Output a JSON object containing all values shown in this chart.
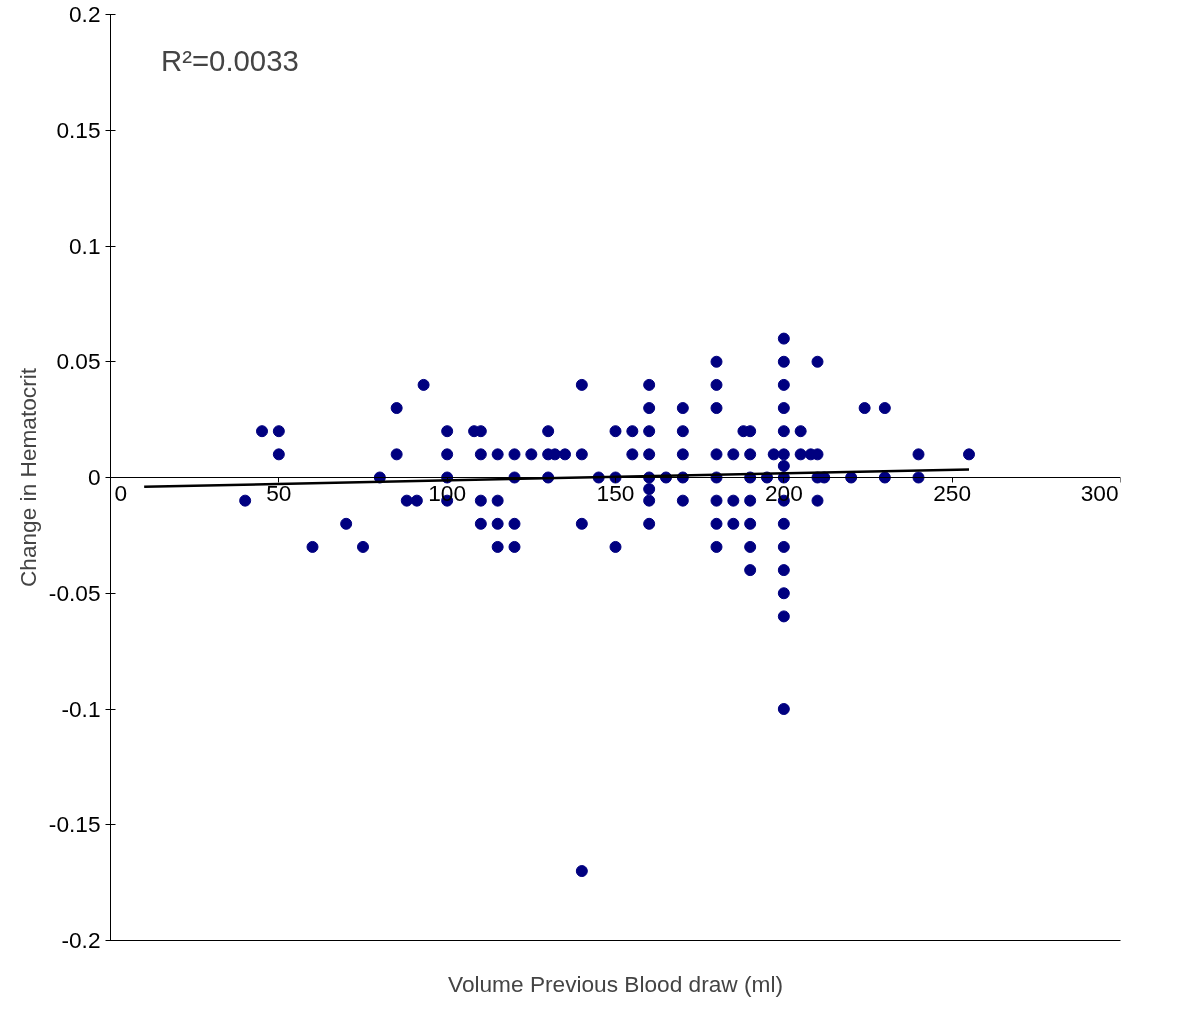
{
  "chart_data": {
    "type": "scatter",
    "xlabel": "Volume Previous Blood draw (ml)",
    "ylabel": "Change in Hematocrit",
    "annotations": [
      "R²=0.0033"
    ],
    "xlim": [
      0,
      300
    ],
    "xticks": [
      0,
      50,
      100,
      150,
      200,
      250,
      300
    ],
    "ylim": [
      -0.2,
      0.2
    ],
    "yticks": [
      -0.2,
      -0.15,
      -0.1,
      -0.05,
      0,
      0.05,
      0.1,
      0.15,
      0.2
    ],
    "grid": false,
    "marker": "circle",
    "series": [
      {
        "color": "#000080",
        "x": [
          40,
          45,
          50,
          50,
          60,
          70,
          75,
          80,
          85,
          85,
          88,
          91,
          93,
          100,
          100,
          100,
          100,
          108,
          110,
          110,
          110,
          110,
          115,
          115,
          115,
          115,
          120,
          120,
          120,
          120,
          125,
          130,
          130,
          130,
          132,
          135,
          140,
          140,
          140,
          140,
          145,
          150,
          150,
          150,
          155,
          155,
          160,
          160,
          160,
          160,
          160,
          160,
          160,
          160,
          165,
          170,
          170,
          170,
          170,
          170,
          180,
          180,
          180,
          180,
          180,
          180,
          180,
          180,
          185,
          185,
          185,
          188,
          190,
          190,
          190,
          190,
          190,
          190,
          190,
          195,
          197,
          200,
          200,
          200,
          200,
          200,
          200,
          200,
          200,
          200,
          200,
          200,
          200,
          200,
          200,
          200,
          205,
          205,
          208,
          210,
          210,
          210,
          210,
          212,
          220,
          224,
          230,
          230,
          240,
          240,
          255
        ],
        "values": [
          -0.01,
          0.02,
          0.02,
          0.01,
          -0.03,
          -0.02,
          -0.03,
          0,
          0.03,
          0.01,
          -0.01,
          -0.01,
          0.04,
          0.02,
          0.01,
          0,
          -0.01,
          0.02,
          0.02,
          0.01,
          -0.01,
          -0.02,
          0.01,
          -0.01,
          -0.02,
          -0.03,
          0.01,
          0,
          -0.02,
          -0.03,
          0.01,
          0.02,
          0.01,
          0,
          0.01,
          0.01,
          0.04,
          0.01,
          -0.02,
          -0.17,
          0,
          0.02,
          0,
          -0.03,
          0.02,
          0.01,
          0.04,
          0.03,
          0.02,
          0.01,
          0,
          -0.005,
          -0.01,
          -0.02,
          0,
          0.03,
          0.02,
          0.01,
          0,
          -0.01,
          0.05,
          0.04,
          0.03,
          0.01,
          0,
          -0.01,
          -0.02,
          -0.03,
          0.01,
          -0.01,
          -0.02,
          0.02,
          0.02,
          0.01,
          0,
          -0.01,
          -0.02,
          -0.03,
          -0.04,
          0,
          0.01,
          0.06,
          0.05,
          0.04,
          0.03,
          0.02,
          0.01,
          0.005,
          0,
          -0.01,
          -0.02,
          -0.03,
          -0.04,
          -0.05,
          -0.06,
          -0.1,
          0.02,
          0.01,
          0.01,
          0.05,
          0.01,
          0,
          -0.01,
          0,
          0,
          0.03,
          0.03,
          0,
          0.01,
          0,
          0.01
        ]
      },
      {
        "type": "line",
        "marker": "none",
        "color": "#000000",
        "x": [
          10,
          255
        ],
        "values": [
          -0.004,
          0.0035
        ]
      }
    ]
  }
}
